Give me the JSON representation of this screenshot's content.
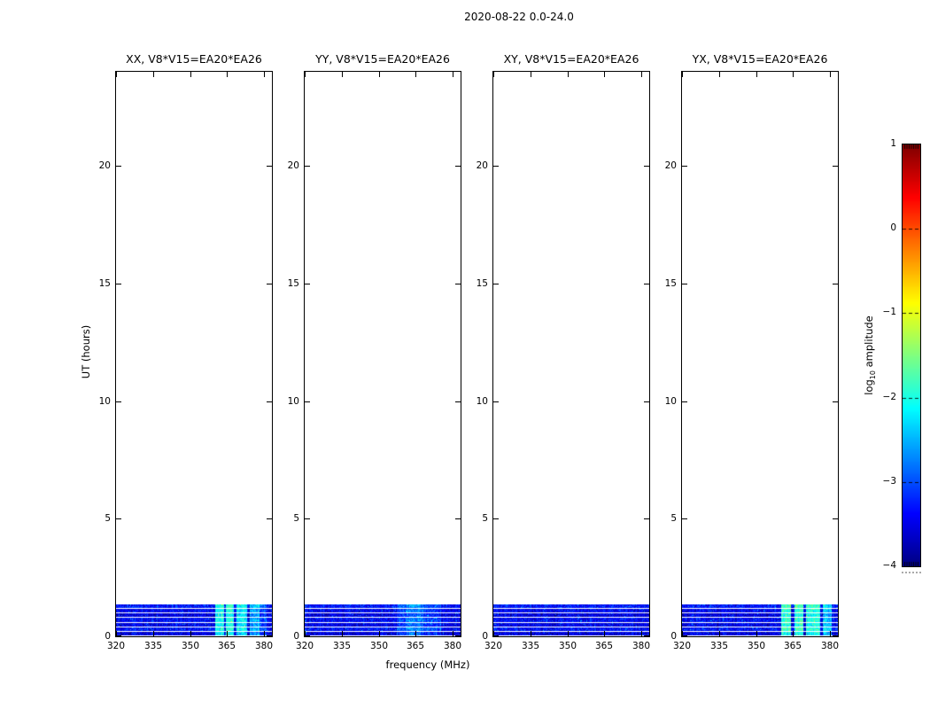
{
  "figure": {
    "background": "#ffffff",
    "axis_color": "#000000"
  },
  "chart_data": {
    "type": "heatmap",
    "title": "2020-08-22 0.0-24.0",
    "xlabel": "frequency (MHz)",
    "ylabel": "UT (hours)",
    "xlim": [
      320,
      383.2
    ],
    "ylim": [
      0,
      24
    ],
    "xticks": [
      320,
      335,
      350,
      365,
      380
    ],
    "xtick_labels": [
      "320",
      "335",
      "350",
      "365",
      "380"
    ],
    "yticks": [
      0,
      5,
      10,
      15,
      20
    ],
    "ytick_labels": [
      "0",
      "5",
      "10",
      "15",
      "20"
    ],
    "grid": false,
    "scan_block": {
      "t_start": 0.0,
      "t_end": 1.35,
      "rows": 7,
      "base_level": -3.45,
      "noise_amplitude": 0.7
    },
    "panels": [
      {
        "pol": "XX",
        "title": "XX, V8*V15=EA20*EA26",
        "bright_bands": [
          {
            "f0": 360.0,
            "f1": 363.5,
            "level": -2.1
          },
          {
            "f0": 364.5,
            "f1": 367.5,
            "level": -2.05
          },
          {
            "f0": 368.5,
            "f1": 373.0,
            "level": -2.2
          },
          {
            "f0": 374.0,
            "f1": 378.0,
            "level": -2.6
          },
          {
            "f0": 378.0,
            "f1": 381.0,
            "level": -3.0
          }
        ]
      },
      {
        "pol": "YY",
        "title": "YY, V8*V15=EA20*EA26",
        "bright_bands": [
          {
            "f0": 357.0,
            "f1": 361.0,
            "level": -3.05
          },
          {
            "f0": 361.0,
            "f1": 368.0,
            "level": -2.85
          },
          {
            "f0": 368.0,
            "f1": 375.0,
            "level": -3.1
          }
        ]
      },
      {
        "pol": "XY",
        "title": "XY, V8*V15=EA20*EA26",
        "bright_bands": []
      },
      {
        "pol": "YX",
        "title": "YX, V8*V15=EA20*EA26",
        "bright_bands": [
          {
            "f0": 360.0,
            "f1": 364.0,
            "level": -1.95
          },
          {
            "f0": 365.5,
            "f1": 369.0,
            "level": -1.9
          },
          {
            "f0": 370.0,
            "f1": 376.0,
            "level": -2.0
          },
          {
            "f0": 377.0,
            "f1": 380.5,
            "level": -2.4
          }
        ]
      }
    ],
    "colorbar": {
      "label_pre": "log",
      "label_sub": "10",
      "label_post": " amplitude",
      "colormap": "jet",
      "vmin": -4,
      "vmax": 1,
      "tick_values": [
        1,
        0,
        -1,
        -2,
        -3,
        -4
      ],
      "ticks": [
        "1",
        "0",
        "−1",
        "−2",
        "−3",
        "−4"
      ]
    },
    "colors": {
      "scan_base_blue": "#0000e0",
      "bright_band_cyan": "#3ce8cf",
      "colorbar_top": "#800000",
      "colorbar_bottom": "#000080"
    }
  }
}
